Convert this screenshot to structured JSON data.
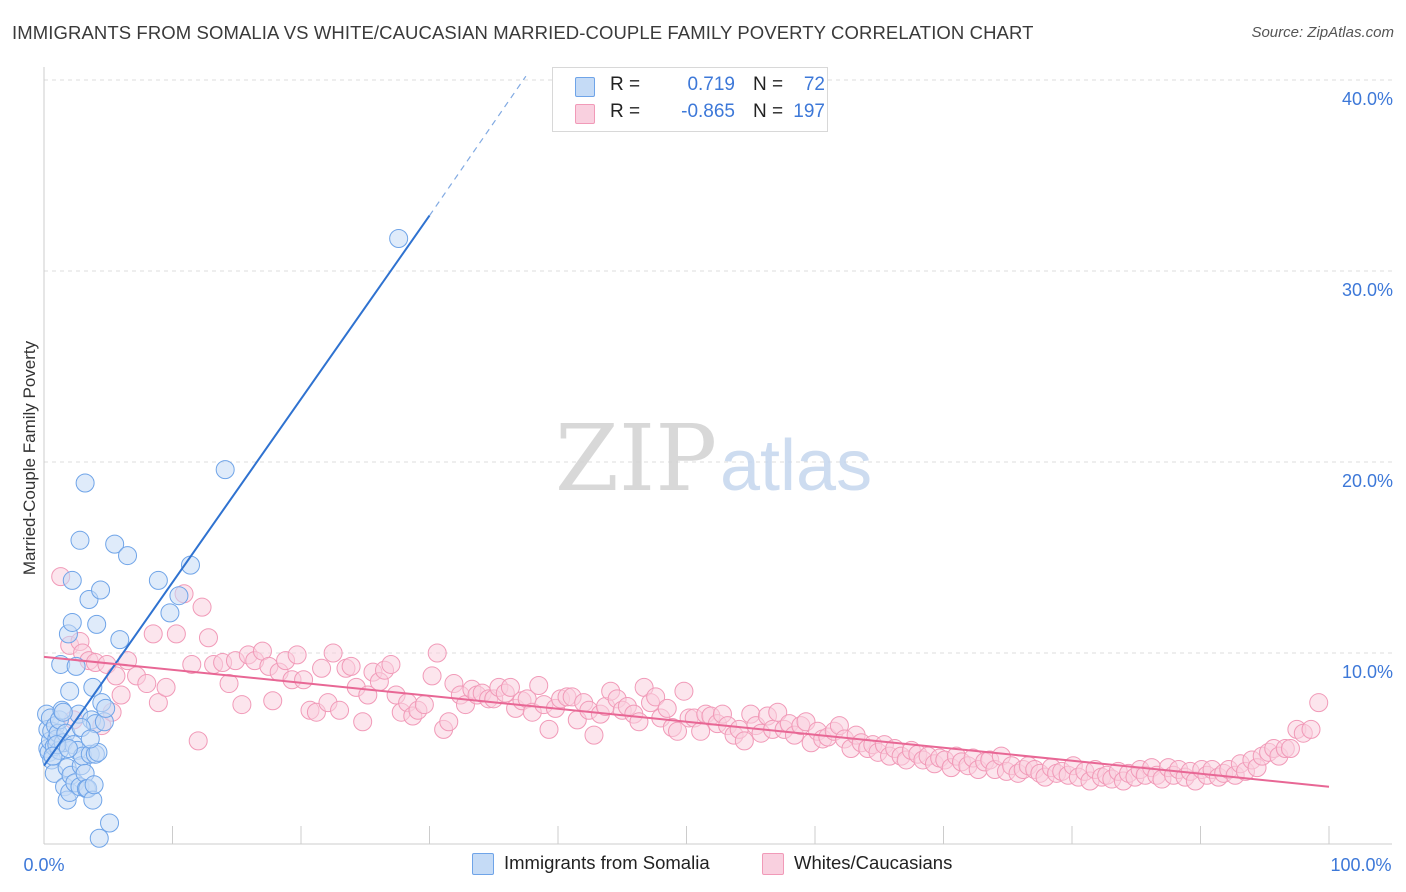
{
  "header": {
    "title": "IMMIGRANTS FROM SOMALIA VS WHITE/CAUCASIAN MARRIED-COUPLE FAMILY POVERTY CORRELATION CHART",
    "source": "Source: ZipAtlas.com"
  },
  "legend": {
    "rows": [
      {
        "r_label": "R =",
        "r_value": "0.719",
        "n_label": "N =",
        "n_value": "72"
      },
      {
        "r_label": "R =",
        "r_value": "-0.865",
        "n_label": "N =",
        "n_value": "197"
      }
    ]
  },
  "watermark": {
    "zip": "ZIP",
    "atlas": "atlas"
  },
  "chart_data": {
    "type": "scatter",
    "title": "IMMIGRANTS FROM SOMALIA VS WHITE/CAUCASIAN MARRIED-COUPLE FAMILY POVERTY CORRELATION CHART",
    "xlabel": "",
    "ylabel": "Married-Couple Family Poverty",
    "xlim": [
      0,
      100
    ],
    "ylim": [
      0,
      42
    ],
    "x_tick_labels": [
      "0.0%",
      "100.0%"
    ],
    "y_ticks": [
      10,
      20,
      30,
      40
    ],
    "y_tick_labels": [
      "10.0%",
      "20.0%",
      "30.0%",
      "40.0%"
    ],
    "grid": true,
    "legend_position": "bottom",
    "colors": {
      "somalia": "#6fa4e8",
      "somalia_line": "#2f72d0",
      "white": "#f19ab8",
      "white_line": "#e86795",
      "tick_label": "#3d78d8"
    },
    "series": [
      {
        "name": "Immigrants from Somalia",
        "r": 0.719,
        "n": 72,
        "trend": {
          "x": [
            0,
            30
          ],
          "y": [
            4.1,
            32.9
          ],
          "dashed_to": {
            "x": 37.5,
            "y": 40.2
          }
        },
        "points": [
          [
            0.2,
            6.8
          ],
          [
            0.3,
            6.0
          ],
          [
            0.3,
            5.0
          ],
          [
            0.4,
            4.8
          ],
          [
            0.5,
            5.4
          ],
          [
            0.5,
            6.6
          ],
          [
            0.6,
            5.9
          ],
          [
            0.6,
            4.4
          ],
          [
            0.8,
            3.7
          ],
          [
            0.8,
            5.1
          ],
          [
            0.9,
            6.2
          ],
          [
            1.0,
            5.5
          ],
          [
            1.1,
            5.8
          ],
          [
            1.2,
            6.5
          ],
          [
            1.2,
            4.9
          ],
          [
            1.3,
            9.4
          ],
          [
            1.4,
            7.0
          ],
          [
            1.5,
            5.3
          ],
          [
            1.6,
            3.0
          ],
          [
            1.7,
            5.8
          ],
          [
            1.8,
            4.0
          ],
          [
            1.8,
            2.3
          ],
          [
            1.9,
            11.0
          ],
          [
            2.0,
            8.0
          ],
          [
            2.0,
            2.7
          ],
          [
            2.1,
            3.6
          ],
          [
            2.2,
            11.6
          ],
          [
            2.2,
            13.8
          ],
          [
            2.3,
            5.2
          ],
          [
            2.4,
            3.2
          ],
          [
            2.5,
            9.3
          ],
          [
            2.6,
            4.9
          ],
          [
            2.7,
            6.8
          ],
          [
            2.8,
            15.9
          ],
          [
            2.8,
            3.0
          ],
          [
            2.9,
            4.1
          ],
          [
            3.0,
            4.6
          ],
          [
            3.2,
            18.9
          ],
          [
            3.2,
            3.7
          ],
          [
            3.3,
            2.9
          ],
          [
            3.4,
            2.9
          ],
          [
            3.5,
            12.8
          ],
          [
            3.6,
            4.7
          ],
          [
            3.7,
            6.5
          ],
          [
            3.8,
            8.2
          ],
          [
            3.8,
            2.3
          ],
          [
            3.9,
            3.1
          ],
          [
            4.0,
            6.3
          ],
          [
            4.0,
            4.7
          ],
          [
            4.1,
            11.5
          ],
          [
            4.2,
            4.8
          ],
          [
            4.3,
            0.3
          ],
          [
            4.4,
            13.3
          ],
          [
            4.5,
            7.4
          ],
          [
            4.7,
            6.4
          ],
          [
            4.8,
            7.1
          ],
          [
            5.1,
            1.1
          ],
          [
            5.5,
            15.7
          ],
          [
            5.9,
            10.7
          ],
          [
            6.5,
            15.1
          ],
          [
            8.9,
            13.8
          ],
          [
            9.8,
            12.1
          ],
          [
            10.5,
            13.0
          ],
          [
            11.4,
            14.6
          ],
          [
            14.1,
            19.6
          ],
          [
            27.6,
            31.7
          ],
          [
            1.0,
            5.2
          ],
          [
            1.5,
            6.9
          ],
          [
            2.9,
            6.1
          ],
          [
            3.6,
            5.5
          ],
          [
            0.7,
            4.6
          ],
          [
            1.9,
            5.0
          ]
        ]
      },
      {
        "name": "Whites/Caucasians",
        "r": -0.865,
        "n": 197,
        "trend": {
          "x": [
            0,
            100
          ],
          "y": [
            9.8,
            3.0
          ]
        },
        "points": [
          [
            1.3,
            14.0
          ],
          [
            2.0,
            10.4
          ],
          [
            2.3,
            6.5
          ],
          [
            2.8,
            10.6
          ],
          [
            3.0,
            10.0
          ],
          [
            3.5,
            9.6
          ],
          [
            4.0,
            9.5
          ],
          [
            4.5,
            6.2
          ],
          [
            4.9,
            9.4
          ],
          [
            5.3,
            6.9
          ],
          [
            5.6,
            8.8
          ],
          [
            6.0,
            7.8
          ],
          [
            6.5,
            9.6
          ],
          [
            7.2,
            8.8
          ],
          [
            8.0,
            8.4
          ],
          [
            8.5,
            11.0
          ],
          [
            8.9,
            7.4
          ],
          [
            9.5,
            8.2
          ],
          [
            10.3,
            11.0
          ],
          [
            10.9,
            13.1
          ],
          [
            11.5,
            9.4
          ],
          [
            12.0,
            5.4
          ],
          [
            12.3,
            12.4
          ],
          [
            12.8,
            10.8
          ],
          [
            13.2,
            9.4
          ],
          [
            13.9,
            9.5
          ],
          [
            14.4,
            8.4
          ],
          [
            14.9,
            9.6
          ],
          [
            15.4,
            7.3
          ],
          [
            15.9,
            9.9
          ],
          [
            16.4,
            9.6
          ],
          [
            17.0,
            10.1
          ],
          [
            17.5,
            9.3
          ],
          [
            17.8,
            7.5
          ],
          [
            18.3,
            9.0
          ],
          [
            18.8,
            9.6
          ],
          [
            19.3,
            8.6
          ],
          [
            19.7,
            9.9
          ],
          [
            20.2,
            8.6
          ],
          [
            20.7,
            7.0
          ],
          [
            21.2,
            6.9
          ],
          [
            21.6,
            9.2
          ],
          [
            22.1,
            7.4
          ],
          [
            22.5,
            10.0
          ],
          [
            23.0,
            7.0
          ],
          [
            23.5,
            9.2
          ],
          [
            23.9,
            9.3
          ],
          [
            24.3,
            8.2
          ],
          [
            24.8,
            6.4
          ],
          [
            25.2,
            7.8
          ],
          [
            25.6,
            9.0
          ],
          [
            26.1,
            8.5
          ],
          [
            26.5,
            9.1
          ],
          [
            27.0,
            9.4
          ],
          [
            27.4,
            7.8
          ],
          [
            27.8,
            6.9
          ],
          [
            28.3,
            7.4
          ],
          [
            28.7,
            6.7
          ],
          [
            29.1,
            7.0
          ],
          [
            29.6,
            7.3
          ],
          [
            30.2,
            8.8
          ],
          [
            30.6,
            10.0
          ],
          [
            31.1,
            6.0
          ],
          [
            31.5,
            6.4
          ],
          [
            31.9,
            8.4
          ],
          [
            32.4,
            7.8
          ],
          [
            32.8,
            7.3
          ],
          [
            33.3,
            8.1
          ],
          [
            33.7,
            7.8
          ],
          [
            34.1,
            7.9
          ],
          [
            34.6,
            7.6
          ],
          [
            35.0,
            7.6
          ],
          [
            35.4,
            8.2
          ],
          [
            35.9,
            7.9
          ],
          [
            36.3,
            8.2
          ],
          [
            36.7,
            7.1
          ],
          [
            37.2,
            7.5
          ],
          [
            37.6,
            7.6
          ],
          [
            38.0,
            6.9
          ],
          [
            38.5,
            8.3
          ],
          [
            38.9,
            7.3
          ],
          [
            39.3,
            6.0
          ],
          [
            39.8,
            7.1
          ],
          [
            40.2,
            7.6
          ],
          [
            40.7,
            7.7
          ],
          [
            41.1,
            7.7
          ],
          [
            41.5,
            6.5
          ],
          [
            42.0,
            7.4
          ],
          [
            42.4,
            7.0
          ],
          [
            42.8,
            5.7
          ],
          [
            43.3,
            6.8
          ],
          [
            43.7,
            7.2
          ],
          [
            44.1,
            8.0
          ],
          [
            44.6,
            7.6
          ],
          [
            45.0,
            7.0
          ],
          [
            45.4,
            7.2
          ],
          [
            45.9,
            6.8
          ],
          [
            46.3,
            6.4
          ],
          [
            46.7,
            8.2
          ],
          [
            47.2,
            7.4
          ],
          [
            47.6,
            7.7
          ],
          [
            48.0,
            6.6
          ],
          [
            48.5,
            7.1
          ],
          [
            48.9,
            6.1
          ],
          [
            49.3,
            5.9
          ],
          [
            49.8,
            8.0
          ],
          [
            50.2,
            6.6
          ],
          [
            50.6,
            6.6
          ],
          [
            51.1,
            5.9
          ],
          [
            51.5,
            6.8
          ],
          [
            51.9,
            6.7
          ],
          [
            52.4,
            6.3
          ],
          [
            52.8,
            6.8
          ],
          [
            53.2,
            6.2
          ],
          [
            53.7,
            5.7
          ],
          [
            54.1,
            6.0
          ],
          [
            54.5,
            5.4
          ],
          [
            55.0,
            6.8
          ],
          [
            55.4,
            6.2
          ],
          [
            55.8,
            5.8
          ],
          [
            56.3,
            6.7
          ],
          [
            56.7,
            6.0
          ],
          [
            57.1,
            6.9
          ],
          [
            57.6,
            6.0
          ],
          [
            58.0,
            6.3
          ],
          [
            58.4,
            5.7
          ],
          [
            58.9,
            6.2
          ],
          [
            59.3,
            6.4
          ],
          [
            59.7,
            5.3
          ],
          [
            60.2,
            5.9
          ],
          [
            60.6,
            5.5
          ],
          [
            61.0,
            5.6
          ],
          [
            61.5,
            5.9
          ],
          [
            61.9,
            6.2
          ],
          [
            62.3,
            5.5
          ],
          [
            62.8,
            5.0
          ],
          [
            63.2,
            5.7
          ],
          [
            63.6,
            5.3
          ],
          [
            64.1,
            5.0
          ],
          [
            64.5,
            5.2
          ],
          [
            64.9,
            4.8
          ],
          [
            65.4,
            5.2
          ],
          [
            65.8,
            4.6
          ],
          [
            66.2,
            5.0
          ],
          [
            66.7,
            4.6
          ],
          [
            67.1,
            4.4
          ],
          [
            67.5,
            4.9
          ],
          [
            68.0,
            4.7
          ],
          [
            68.4,
            4.4
          ],
          [
            68.8,
            4.6
          ],
          [
            69.3,
            4.2
          ],
          [
            69.7,
            4.5
          ],
          [
            70.1,
            4.4
          ],
          [
            70.6,
            4.0
          ],
          [
            71.0,
            4.6
          ],
          [
            71.4,
            4.3
          ],
          [
            71.9,
            4.1
          ],
          [
            72.3,
            4.5
          ],
          [
            72.7,
            3.9
          ],
          [
            73.2,
            4.3
          ],
          [
            73.6,
            4.4
          ],
          [
            74.0,
            3.9
          ],
          [
            74.5,
            4.6
          ],
          [
            74.9,
            3.8
          ],
          [
            75.3,
            4.1
          ],
          [
            75.8,
            3.7
          ],
          [
            76.2,
            3.9
          ],
          [
            76.6,
            4.1
          ],
          [
            77.1,
            3.9
          ],
          [
            77.5,
            3.7
          ],
          [
            77.9,
            3.5
          ],
          [
            78.4,
            4.0
          ],
          [
            78.8,
            3.7
          ],
          [
            79.2,
            3.8
          ],
          [
            79.7,
            3.6
          ],
          [
            80.1,
            4.1
          ],
          [
            80.5,
            3.5
          ],
          [
            81.0,
            3.8
          ],
          [
            81.4,
            3.3
          ],
          [
            81.8,
            3.9
          ],
          [
            82.3,
            3.5
          ],
          [
            82.7,
            3.6
          ],
          [
            83.1,
            3.4
          ],
          [
            83.6,
            3.8
          ],
          [
            84.0,
            3.3
          ],
          [
            84.4,
            3.7
          ],
          [
            84.9,
            3.5
          ],
          [
            85.3,
            3.9
          ],
          [
            85.7,
            3.6
          ],
          [
            86.2,
            4.0
          ],
          [
            86.6,
            3.6
          ],
          [
            87.0,
            3.4
          ],
          [
            87.5,
            4.0
          ],
          [
            87.9,
            3.6
          ],
          [
            88.3,
            3.9
          ],
          [
            88.8,
            3.5
          ],
          [
            89.2,
            3.8
          ],
          [
            89.6,
            3.3
          ],
          [
            90.1,
            3.9
          ],
          [
            90.5,
            3.6
          ],
          [
            90.9,
            3.9
          ],
          [
            91.4,
            3.5
          ],
          [
            91.8,
            3.7
          ],
          [
            92.2,
            3.9
          ],
          [
            92.7,
            3.6
          ],
          [
            93.1,
            4.2
          ],
          [
            93.5,
            3.8
          ],
          [
            94.0,
            4.4
          ],
          [
            94.4,
            4.0
          ],
          [
            94.8,
            4.6
          ],
          [
            95.3,
            4.8
          ],
          [
            95.7,
            5.0
          ],
          [
            96.1,
            4.6
          ],
          [
            96.6,
            5.0
          ],
          [
            97.0,
            5.0
          ],
          [
            97.5,
            6.0
          ],
          [
            98.0,
            5.8
          ],
          [
            98.6,
            6.0
          ],
          [
            99.2,
            7.4
          ]
        ]
      }
    ]
  },
  "axes": {
    "ylabel": "Married-Couple Family Poverty",
    "x_left": "0.0%",
    "x_right": "100.0%",
    "y_ticks": [
      "10.0%",
      "20.0%",
      "30.0%",
      "40.0%"
    ]
  },
  "bottom_legend": {
    "somalia": "Immigrants from Somalia",
    "white": "Whites/Caucasians"
  }
}
